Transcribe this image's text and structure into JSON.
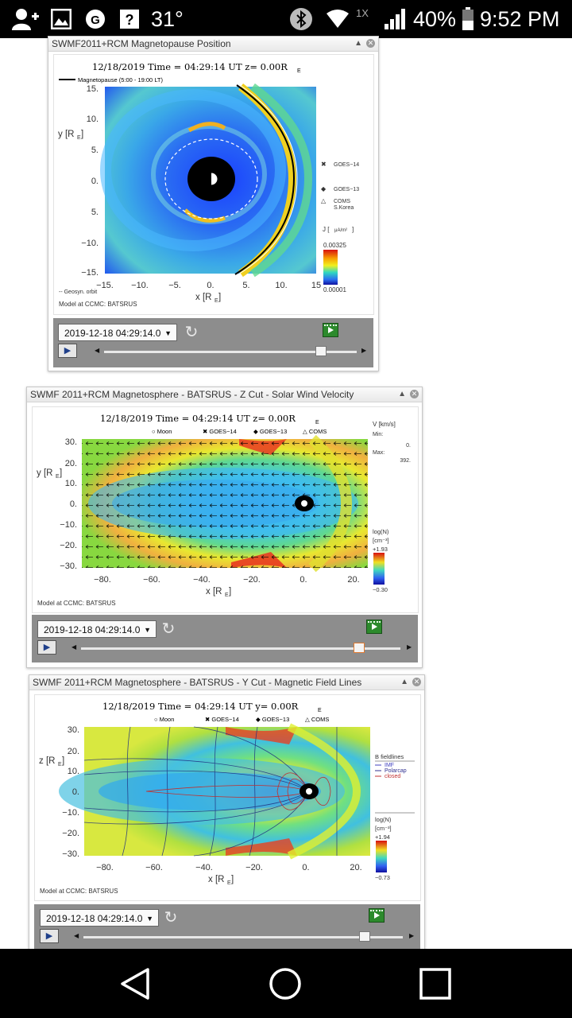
{
  "status_bar": {
    "temperature": "31°",
    "zoom": "1X",
    "battery": "40%",
    "time": "9:52 PM",
    "icons": [
      "add-person-icon",
      "image-icon",
      "signal-notification-icon",
      "help-icon",
      "bluetooth-icon",
      "wifi-icon",
      "cell-signal-icon",
      "battery-icon"
    ]
  },
  "windows": [
    {
      "title": "SWMF2011+RCM Magnetopause Position",
      "plot": {
        "heading": "12/18/2019 Time = 04:29:14 UT z= 0.00R",
        "heading_sub": "E",
        "legend_line": "Magnetopause (5:00 - 19:00 LT)",
        "ylabel": "y [R",
        "ylabel_sub": "E",
        "xlabel": "x [R",
        "xlabel_sub": "E",
        "yticks": [
          "15.",
          "10.",
          "5.",
          "0.",
          "5.",
          "−10.",
          "−15."
        ],
        "xticks": [
          "−15.",
          "−10.",
          "−5.",
          "0.",
          "5.",
          "10.",
          "15"
        ],
        "markers": [
          {
            "symbol": "✖",
            "label": "GOES−14"
          },
          {
            "symbol": "◆",
            "label": "GOES−13"
          },
          {
            "symbol": "△",
            "label": "COMS"
          }
        ],
        "coms_sub": "S.Korea",
        "j_label": "J [",
        "j_units": "μA/m²",
        "scale_max": "0.00325",
        "scale_min": "0.00001",
        "orbit_label": "-- Geosyn. orbit",
        "model": "Model at CCMC: BATSRUS"
      },
      "time_value": "2019-12-18 04:29:14.0",
      "slider_pos": 0.86
    },
    {
      "title": "SWMF 2011+RCM Magnetosphere - BATSRUS - Z Cut - Solar Wind Velocity",
      "plot": {
        "heading": "12/18/2019 Time = 04:29:14 UT z= 0.00R",
        "heading_sub": "E",
        "legend_items": [
          "○ Moon",
          "✖ GOES−14",
          "◆ GOES−13",
          "△ COMS"
        ],
        "ylabel": "y [R",
        "ylabel_sub": "E",
        "xlabel": "x [R",
        "xlabel_sub": "E",
        "yticks": [
          "30.",
          "20.",
          "10.",
          "0.",
          "−10.",
          "−20.",
          "−30."
        ],
        "xticks": [
          "−80.",
          "−60.",
          "−40.",
          "−20.",
          "0.",
          "20."
        ],
        "v_label": "V [km/s]",
        "min_label": "Min:",
        "min_value": "0.",
        "max_label": "Max:",
        "max_value": "392.",
        "scale_title": "log(N)",
        "scale_units": "[cm⁻³]",
        "scale_max": "+1.93",
        "scale_min": "−0.30",
        "model": "Model at CCMC: BATSRUS"
      },
      "time_value": "2019-12-18 04:29:14.0",
      "slider_pos": 0.87
    },
    {
      "title": "SWMF 2011+RCM Magnetosphere - BATSRUS - Y Cut - Magnetic Field Lines",
      "plot": {
        "heading": "12/18/2019 Time = 04:29:14 UT y= 0.00R",
        "heading_sub": "E",
        "legend_items": [
          "○ Moon",
          "✖ GOES−14",
          "◆ GOES−13",
          "△ COMS"
        ],
        "ylabel": "z [R",
        "ylabel_sub": "E",
        "xlabel": "x [R",
        "xlabel_sub": "E",
        "yticks": [
          "30.",
          "20.",
          "10.",
          "0.",
          "−10.",
          "−20.",
          "−30."
        ],
        "xticks": [
          "−80.",
          "−60.",
          "−40.",
          "−20.",
          "0.",
          "20."
        ],
        "field_legend_title": "B fieldlines",
        "field_legend": [
          {
            "name": "IMF",
            "color": "#4040c0"
          },
          {
            "name": "Polarcap",
            "color": "#303090"
          },
          {
            "name": "closed",
            "color": "#c03030"
          }
        ],
        "scale_title": "log(N)",
        "scale_units": "[cm⁻³]",
        "scale_max": "+1.94",
        "scale_min": "−0.73",
        "model": "Model at CCMC: BATSRUS"
      },
      "time_value": "2019-12-18 04:29:14.0",
      "slider_pos": 0.88
    }
  ],
  "nav": {
    "back": "back-icon",
    "home": "home-icon",
    "recents": "recents-icon"
  }
}
